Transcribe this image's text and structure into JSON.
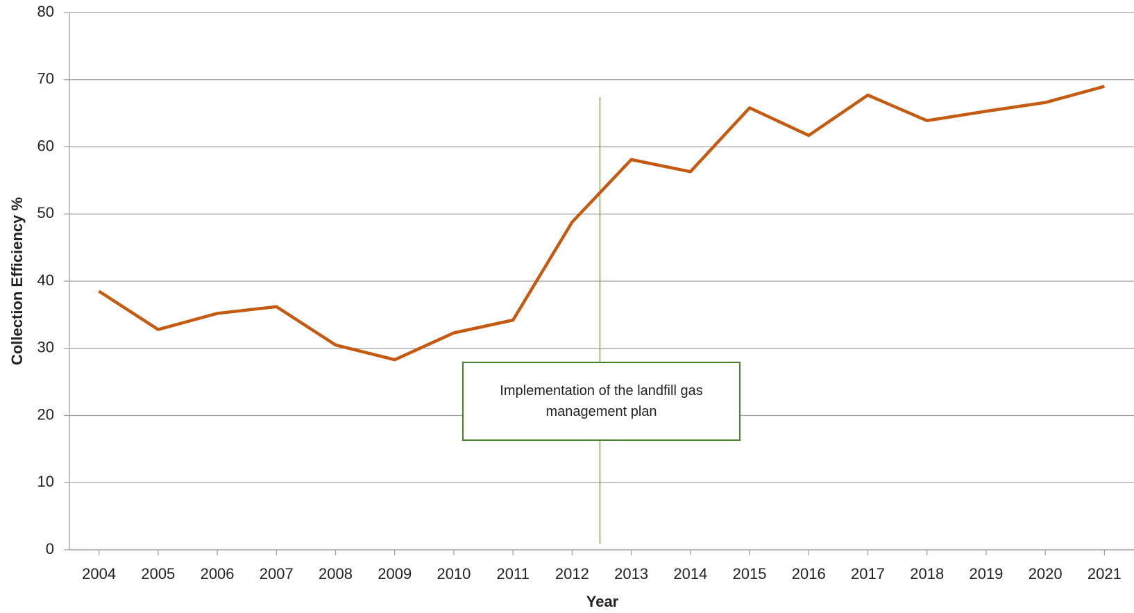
{
  "chart_data": {
    "type": "line",
    "x_label": "Year",
    "y_label": "Collection Efficiency %",
    "annotation": "Implementation of the landfill gas management plan",
    "categories": [
      "2004",
      "2005",
      "2006",
      "2007",
      "2008",
      "2009",
      "2010",
      "2011",
      "2012",
      "2013",
      "2014",
      "2015",
      "2016",
      "2017",
      "2018",
      "2019",
      "2020",
      "2021"
    ],
    "series": [
      {
        "name": "Collection Efficiency",
        "color": "#c55a11",
        "values": [
          38.5,
          32.8,
          35.2,
          36.2,
          30.5,
          28.3,
          32.3,
          34.2,
          48.8,
          58.1,
          56.3,
          65.8,
          61.7,
          67.7,
          63.9,
          65.3,
          66.6,
          69.0
        ]
      }
    ],
    "ylim": [
      0,
      80
    ],
    "yticks": [
      0,
      10,
      20,
      30,
      40,
      50,
      60,
      70,
      80
    ],
    "grid": true
  }
}
